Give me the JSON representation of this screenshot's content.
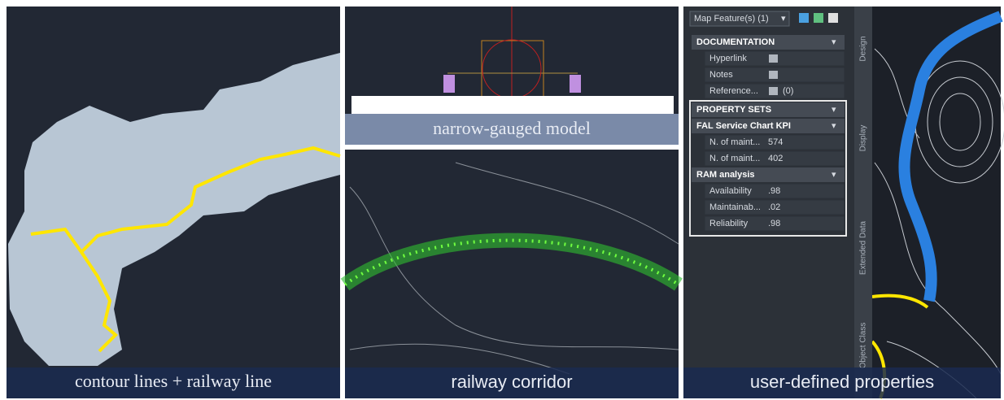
{
  "captions": [
    "contour lines + railway line",
    "narrow-gauged model",
    "railway corridor",
    "user-defined properties"
  ],
  "property_panel": {
    "selector": "Map Feature(s) (1)",
    "tabs": [
      "Design",
      "Display",
      "Extended Data",
      "Object Class"
    ],
    "sections": [
      {
        "title": "DOCUMENTATION",
        "rows": [
          {
            "label": "Hyperlink"
          },
          {
            "label": "Notes"
          },
          {
            "label": "Reference...",
            "value": "(0)"
          }
        ]
      },
      {
        "title": "PROPERTY SETS",
        "rows": []
      },
      {
        "title": "FAL Service Chart KPI",
        "rows": [
          {
            "label": "N. of maint...",
            "value": "574"
          },
          {
            "label": "N. of maint...",
            "value": "402"
          }
        ]
      },
      {
        "title": "RAM analysis",
        "rows": [
          {
            "label": "Availability",
            "value": ".98"
          },
          {
            "label": "Maintainab...",
            "value": ".02"
          },
          {
            "label": "Reliability",
            "value": ".98"
          }
        ]
      }
    ]
  }
}
